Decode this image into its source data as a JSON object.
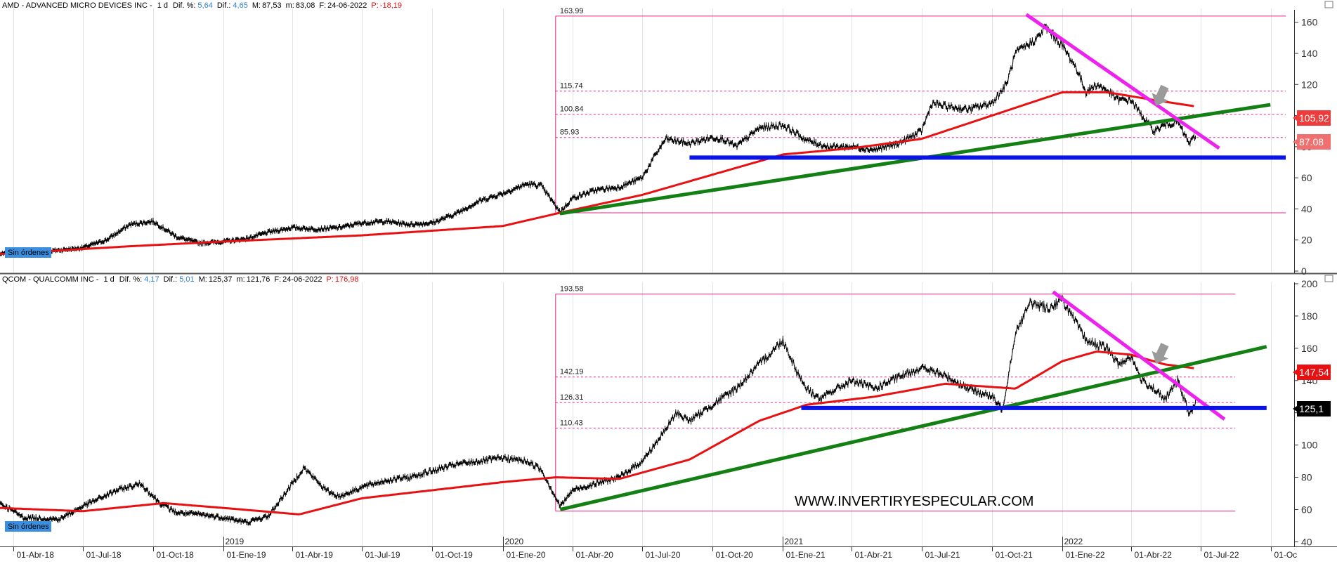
{
  "panels": [
    {
      "id": "amd",
      "header": {
        "symbol": "AMD - ADVANCED MICRO DEVICES INC -",
        "timeframe": "1 d",
        "dif_pct_label": "Dif. %:",
        "dif_pct_value": "5,64",
        "dif_label": "Dif.:",
        "dif_value": "4,65",
        "max_label": "M:",
        "max_value": "87,53",
        "min_label": "m:",
        "min_value": "83,08",
        "date_label": "F:",
        "date_value": "24-06-2022",
        "p_label": "P:",
        "p_value": "-18,19"
      },
      "orders_badge": "Sin órdenes",
      "price_tags": [
        {
          "text": "105,92",
          "value": 105.92,
          "bg": "#ee3b3b",
          "fg": "#ffffff"
        },
        {
          "text": "87.08",
          "value": 87.08,
          "bg": "#f07070",
          "fg": "#ffffff"
        }
      ]
    },
    {
      "id": "qcom",
      "header": {
        "symbol": "QCOM - QUALCOMM INC -",
        "timeframe": "1 d",
        "dif_pct_label": "Dif. %:",
        "dif_pct_value": "4,17",
        "dif_label": "Dif.:",
        "dif_value": "5,01",
        "max_label": "M:",
        "max_value": "125,37",
        "min_label": "m:",
        "min_value": "121,76",
        "date_label": "F:",
        "date_value": "24-06-2022",
        "p_label": "P:",
        "p_value": "176,98"
      },
      "orders_badge": "Sin órdenes",
      "price_tags": [
        {
          "text": "147,54",
          "value": 147.54,
          "bg": "#e81010",
          "fg": "#ffffff"
        },
        {
          "text": "125,1",
          "value": 125.1,
          "bg": "#000000",
          "fg": "#ffffff"
        }
      ]
    }
  ],
  "x_axis": {
    "ticks": [
      "01-Abr-18",
      "01-Jul-18",
      "01-Oct-18",
      "01-Ene-19",
      "01-Abr-19",
      "01-Jul-19",
      "01-Oct-19",
      "01-Ene-20",
      "01-Abr-20",
      "01-Jul-20",
      "01-Oct-20",
      "01-Ene-21",
      "01-Abr-21",
      "01-Jul-21",
      "01-Oct-21",
      "01-Ene-22",
      "01-Abr-22",
      "01-Jul-22",
      "01-Oc"
    ],
    "year_labels": [
      "2019",
      "2020",
      "2021",
      "2022"
    ]
  },
  "watermark": "WWW.INVERTIRYESPECULAR.COM",
  "colors": {
    "price": "#000000",
    "moving_average": "#e81010",
    "fibonacci": "#e0288c",
    "support": "#0a14e6",
    "uptrend": "#138013",
    "downtrend": "#ee22ee",
    "arrow": "#9a9a9a",
    "header_blue": "#2f7fd0",
    "header_red": "#e01010",
    "badge_bg": "#3a8fe0",
    "grid": "#e4e4e4"
  },
  "chart_data": [
    {
      "type": "line",
      "title": "AMD - ADVANCED MICRO DEVICES INC",
      "x_range": [
        "2018-03-15",
        "2022-10-20"
      ],
      "ylim": [
        0,
        168
      ],
      "y_ticks": [
        0,
        20,
        40,
        60,
        80,
        100,
        120,
        140,
        160
      ],
      "grid": true,
      "series": [
        {
          "role": "price",
          "x": [
            "2018-03-15",
            "2018-05-01",
            "2018-07-01",
            "2018-08-01",
            "2018-09-01",
            "2018-10-01",
            "2018-11-01",
            "2018-12-01",
            "2019-01-01",
            "2019-02-01",
            "2019-03-01",
            "2019-04-01",
            "2019-05-01",
            "2019-06-01",
            "2019-07-01",
            "2019-08-01",
            "2019-09-01",
            "2019-10-01",
            "2019-11-01",
            "2019-12-01",
            "2020-01-01",
            "2020-02-01",
            "2020-02-20",
            "2020-03-16",
            "2020-04-01",
            "2020-05-01",
            "2020-06-01",
            "2020-07-01",
            "2020-07-20",
            "2020-08-01",
            "2020-09-01",
            "2020-10-01",
            "2020-10-15",
            "2020-11-01",
            "2020-12-01",
            "2021-01-01",
            "2021-01-20",
            "2021-02-01",
            "2021-03-01",
            "2021-04-01",
            "2021-05-01",
            "2021-06-01",
            "2021-07-01",
            "2021-07-15",
            "2021-08-01",
            "2021-09-01",
            "2021-10-01",
            "2021-10-20",
            "2021-11-01",
            "2021-11-30",
            "2021-12-10",
            "2022-01-01",
            "2022-01-20",
            "2022-02-01",
            "2022-02-15",
            "2022-03-01",
            "2022-03-15",
            "2022-04-01",
            "2022-04-15",
            "2022-05-01",
            "2022-05-15",
            "2022-06-01",
            "2022-06-16",
            "2022-06-24"
          ],
          "y": [
            11,
            12,
            15,
            20,
            30,
            32,
            22,
            18,
            19,
            21,
            25,
            28,
            27,
            28,
            31,
            32,
            30,
            31,
            37,
            45,
            50,
            56,
            55,
            38,
            47,
            52,
            54,
            60,
            76,
            85,
            82,
            86,
            85,
            80,
            92,
            94,
            88,
            84,
            80,
            80,
            78,
            82,
            90,
            108,
            106,
            104,
            108,
            120,
            140,
            150,
            157,
            145,
            130,
            115,
            120,
            116,
            110,
            110,
            100,
            90,
            94,
            96,
            82,
            87.08
          ]
        },
        {
          "role": "moving_average",
          "x": [
            "2018-03-15",
            "2018-09-01",
            "2019-01-01",
            "2019-07-01",
            "2020-01-01",
            "2020-03-20",
            "2020-07-01",
            "2020-10-01",
            "2021-01-01",
            "2021-04-01",
            "2021-07-01",
            "2021-10-01",
            "2022-01-01",
            "2022-03-01",
            "2022-05-01",
            "2022-06-24"
          ],
          "y": [
            11,
            16,
            19,
            23,
            29,
            38,
            49,
            62,
            75,
            79,
            85,
            100,
            115,
            115,
            110,
            105.92
          ]
        },
        {
          "role": "uptrend",
          "x": [
            "2020-03-16",
            "2022-09-30"
          ],
          "y": [
            37,
            107
          ]
        },
        {
          "role": "downtrend",
          "x": [
            "2021-11-15",
            "2022-07-25"
          ],
          "y": [
            165,
            79
          ]
        },
        {
          "role": "support",
          "x": [
            "2020-09-01",
            "2022-10-20"
          ],
          "y": [
            73,
            73
          ]
        }
      ],
      "fibonacci": {
        "start": "2020-03-10",
        "end": "2022-10-20",
        "high": 163.99,
        "low": 37.5,
        "levels": [
          {
            "label": "163.99",
            "value": 163.99,
            "style": "solid"
          },
          {
            "label": "115.74",
            "value": 115.74,
            "style": "dashed"
          },
          {
            "label": "100.84",
            "value": 100.84,
            "style": "dashed"
          },
          {
            "label": "85.93",
            "value": 85.93,
            "style": "dashed"
          },
          {
            "label": "",
            "value": 37.5,
            "style": "solid"
          }
        ]
      },
      "annotations": [
        {
          "type": "arrow-down",
          "x": "2022-05-05",
          "y": 108
        }
      ]
    },
    {
      "type": "line",
      "title": "QCOM - QUALCOMM INC",
      "x_range": [
        "2018-03-15",
        "2022-10-20"
      ],
      "ylim": [
        38,
        200
      ],
      "y_ticks": [
        40,
        60,
        80,
        100,
        120,
        140,
        160,
        180,
        200
      ],
      "grid": true,
      "series": [
        {
          "role": "price",
          "x": [
            "2018-03-15",
            "2018-04-15",
            "2018-06-01",
            "2018-07-01",
            "2018-08-15",
            "2018-09-15",
            "2018-10-10",
            "2018-11-01",
            "2018-12-01",
            "2019-01-01",
            "2019-02-01",
            "2019-03-01",
            "2019-04-16",
            "2019-05-15",
            "2019-06-01",
            "2019-07-01",
            "2019-08-01",
            "2019-09-01",
            "2019-10-01",
            "2019-11-01",
            "2019-12-01",
            "2020-01-01",
            "2020-02-01",
            "2020-02-20",
            "2020-03-16",
            "2020-04-01",
            "2020-05-01",
            "2020-06-01",
            "2020-07-01",
            "2020-07-25",
            "2020-08-15",
            "2020-09-01",
            "2020-10-01",
            "2020-11-01",
            "2020-12-01",
            "2021-01-01",
            "2021-01-20",
            "2021-02-01",
            "2021-02-20",
            "2021-03-01",
            "2021-04-01",
            "2021-05-01",
            "2021-06-01",
            "2021-07-01",
            "2021-08-01",
            "2021-09-01",
            "2021-10-01",
            "2021-10-15",
            "2021-11-01",
            "2021-11-20",
            "2021-12-15",
            "2022-01-01",
            "2022-01-20",
            "2022-02-01",
            "2022-03-01",
            "2022-03-15",
            "2022-04-01",
            "2022-04-15",
            "2022-05-01",
            "2022-05-15",
            "2022-06-01",
            "2022-06-16",
            "2022-06-24"
          ],
          "y": [
            64,
            55,
            54,
            62,
            72,
            76,
            64,
            58,
            57,
            55,
            52,
            56,
            86,
            72,
            68,
            74,
            78,
            80,
            84,
            88,
            90,
            92,
            90,
            85,
            62,
            72,
            76,
            80,
            90,
            105,
            120,
            115,
            125,
            135,
            150,
            165,
            145,
            135,
            128,
            132,
            140,
            135,
            142,
            148,
            143,
            135,
            130,
            122,
            170,
            188,
            185,
            190,
            175,
            165,
            160,
            150,
            155,
            140,
            135,
            128,
            140,
            119,
            125.1
          ]
        },
        {
          "role": "moving_average",
          "x": [
            "2018-03-15",
            "2018-07-01",
            "2018-10-15",
            "2019-01-01",
            "2019-04-10",
            "2019-07-01",
            "2020-01-01",
            "2020-03-10",
            "2020-06-01",
            "2020-09-01",
            "2020-12-01",
            "2021-02-01",
            "2021-05-01",
            "2021-08-01",
            "2021-11-01",
            "2022-01-01",
            "2022-02-15",
            "2022-04-01",
            "2022-05-15",
            "2022-06-24"
          ],
          "y": [
            61,
            59,
            64,
            61,
            57,
            67,
            77,
            80,
            79,
            91,
            115,
            125,
            130,
            138,
            135,
            152,
            158,
            156,
            150,
            147.54
          ]
        },
        {
          "role": "uptrend",
          "x": [
            "2020-03-16",
            "2022-09-25"
          ],
          "y": [
            60,
            161
          ]
        },
        {
          "role": "downtrend",
          "x": [
            "2021-12-20",
            "2022-08-01"
          ],
          "y": [
            195,
            116
          ]
        },
        {
          "role": "support",
          "x": [
            "2021-01-25",
            "2022-09-25"
          ],
          "y": [
            123,
            123
          ]
        }
      ],
      "fibonacci": {
        "start": "2020-03-10",
        "end": "2022-08-15",
        "high": 193.58,
        "low": 59,
        "levels": [
          {
            "label": "193.58",
            "value": 193.58,
            "style": "solid"
          },
          {
            "label": "142.19",
            "value": 142.19,
            "style": "dashed"
          },
          {
            "label": "126.31",
            "value": 126.31,
            "style": "dashed"
          },
          {
            "label": "110.43",
            "value": 110.43,
            "style": "dashed"
          },
          {
            "label": "",
            "value": 59,
            "style": "solid"
          }
        ]
      },
      "annotations": [
        {
          "type": "arrow-down",
          "x": "2022-05-05",
          "y": 152
        }
      ]
    }
  ]
}
